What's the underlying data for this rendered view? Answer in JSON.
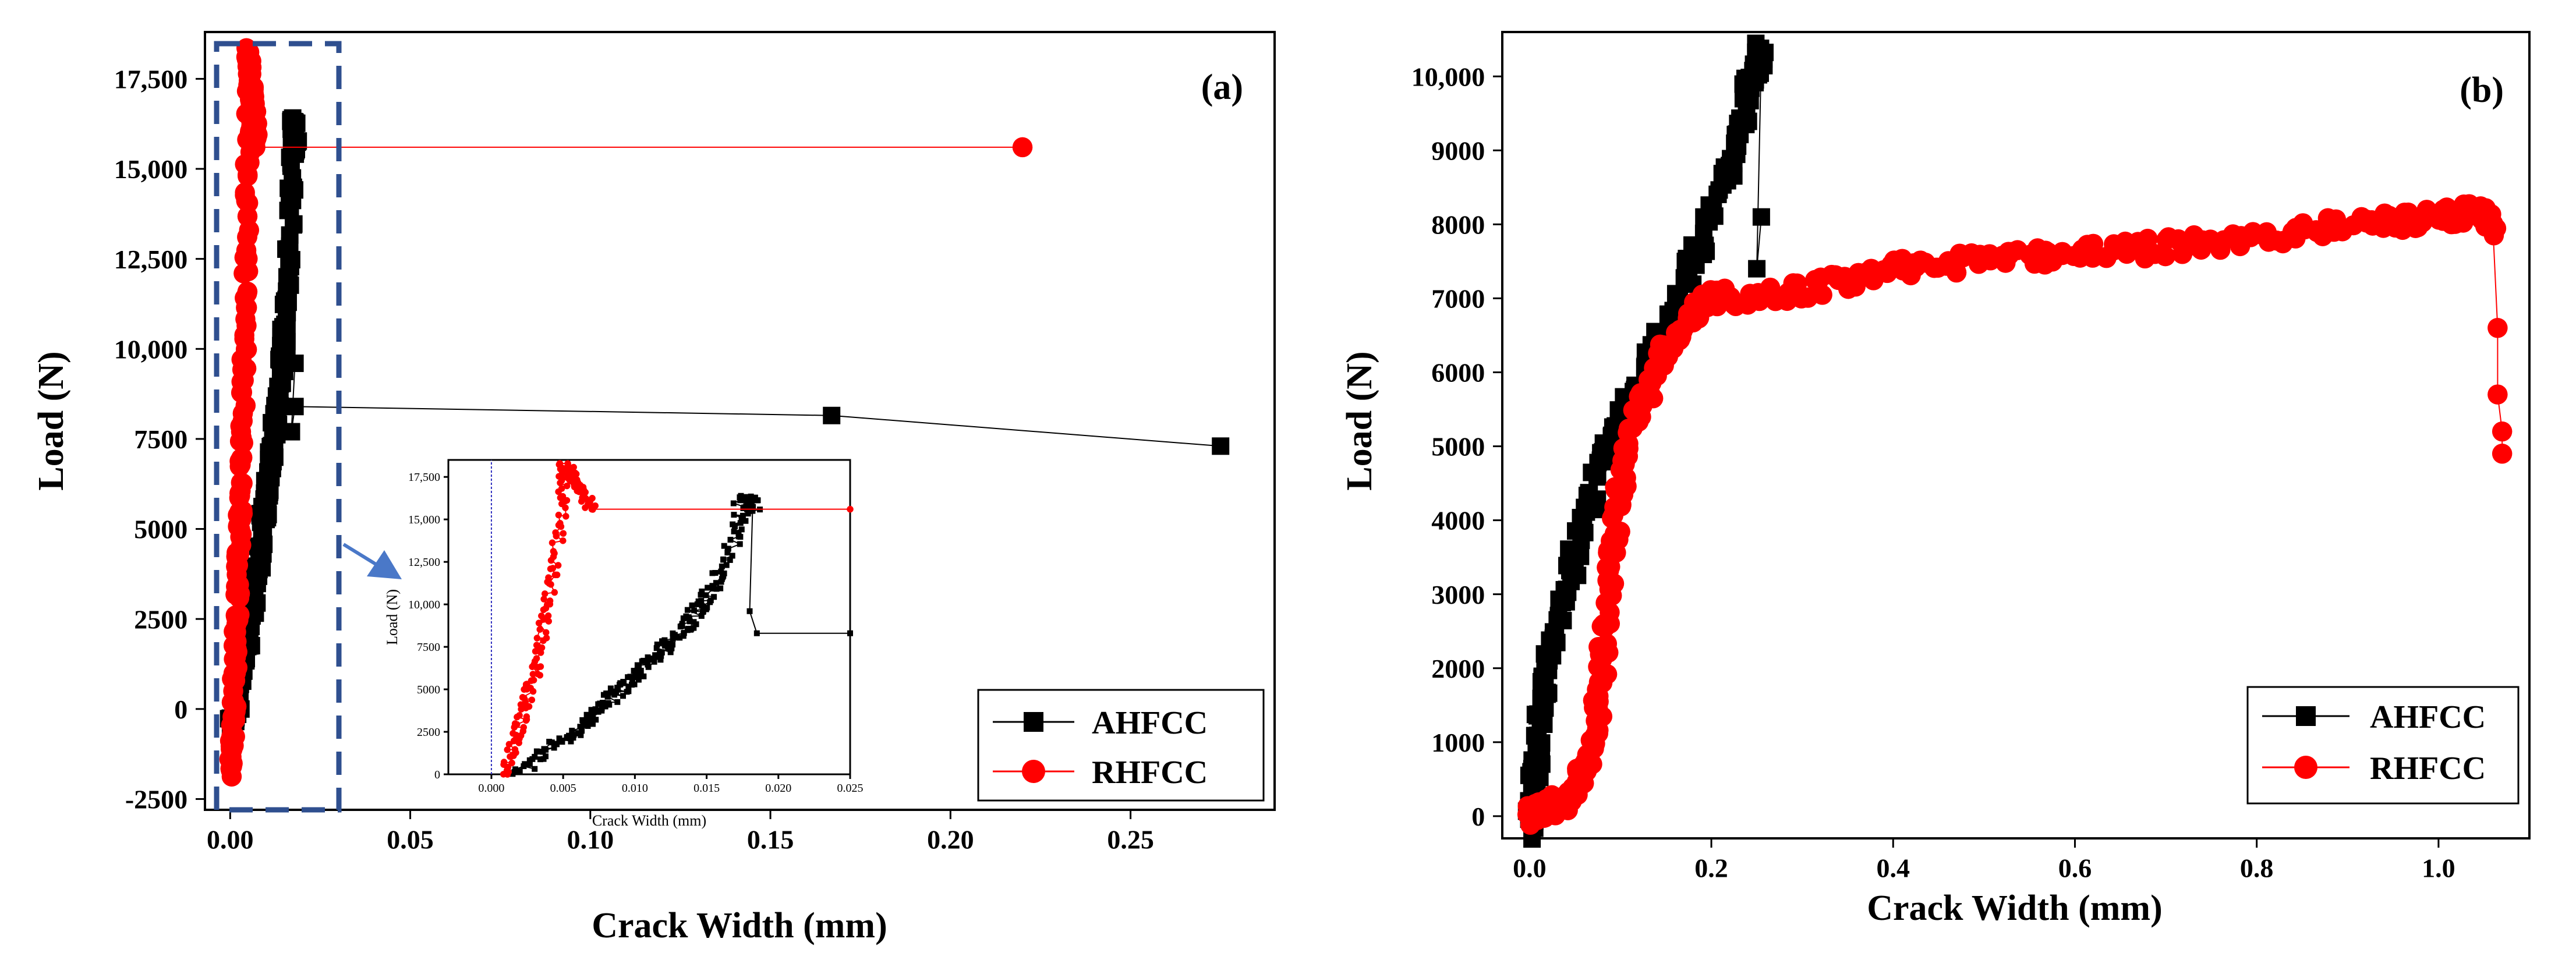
{
  "colors": {
    "ahfcc": "#000000",
    "rhfcc": "#ff0000",
    "box": "#2f4f8f",
    "arrow": "#4a78c8",
    "zero_line": "#3030c0"
  },
  "chart_data": [
    {
      "id": "a",
      "type": "scatter",
      "panel_label": "(a)",
      "xlabel": "Crack Width (mm)",
      "ylabel": "Load (N)",
      "xlim": [
        -0.007,
        0.29
      ],
      "ylim": [
        -2800,
        18800
      ],
      "xticks": [
        0.0,
        0.05,
        0.1,
        0.15,
        0.2,
        0.25
      ],
      "xtick_labels": [
        "0.00",
        "0.05",
        "0.10",
        "0.15",
        "0.20",
        "0.25"
      ],
      "yticks": [
        -2500,
        0,
        2500,
        5000,
        7500,
        10000,
        12500,
        15000,
        17500
      ],
      "ytick_labels": [
        "-2500",
        "0",
        "2500",
        "5000",
        "7500",
        "10,000",
        "12,500",
        "15,000",
        "17,500"
      ],
      "legend_position": "bottom-right",
      "series": [
        {
          "name": "AHFCC",
          "points": [
            [
              0.0,
              -500
            ],
            [
              0.002,
              0
            ],
            [
              0.004,
              1500
            ],
            [
              0.006,
              2500
            ],
            [
              0.007,
              3500
            ],
            [
              0.008,
              4200
            ],
            [
              0.009,
              5000
            ],
            [
              0.01,
              5800
            ],
            [
              0.011,
              6600
            ],
            [
              0.012,
              7400
            ],
            [
              0.013,
              8200
            ],
            [
              0.014,
              9200
            ],
            [
              0.015,
              10300
            ],
            [
              0.016,
              11800
            ],
            [
              0.017,
              14000
            ],
            [
              0.0175,
              16000
            ],
            [
              0.018,
              16300
            ],
            [
              0.0182,
              15500
            ],
            [
              0.018,
              9600
            ],
            [
              0.017,
              7700
            ],
            [
              0.018,
              8400
            ],
            [
              0.167,
              8150
            ],
            [
              0.275,
              7300
            ]
          ]
        },
        {
          "name": "RHFCC",
          "points": [
            [
              0.0,
              -1800
            ],
            [
              0.0005,
              -1000
            ],
            [
              0.001,
              0
            ],
            [
              0.0015,
              1500
            ],
            [
              0.002,
              3000
            ],
            [
              0.0025,
              4500
            ],
            [
              0.003,
              6000
            ],
            [
              0.0035,
              8000
            ],
            [
              0.004,
              10500
            ],
            [
              0.0045,
              13000
            ],
            [
              0.005,
              16000
            ],
            [
              0.005,
              18200
            ],
            [
              0.0055,
              17800
            ],
            [
              0.006,
              17000
            ],
            [
              0.0065,
              16500
            ],
            [
              0.007,
              15600
            ],
            [
              0.22,
              15600
            ]
          ]
        }
      ]
    },
    {
      "id": "inset",
      "type": "scatter",
      "xlabel": "Crack Width (mm)",
      "ylabel": "Load (N)",
      "xlim": [
        -0.003,
        0.025
      ],
      "ylim": [
        0,
        18500
      ],
      "xticks": [
        0.0,
        0.005,
        0.01,
        0.015,
        0.02,
        0.025
      ],
      "xtick_labels": [
        "0.000",
        "0.005",
        "0.010",
        "0.015",
        "0.020",
        "0.025"
      ],
      "yticks": [
        0,
        2500,
        5000,
        7500,
        10000,
        12500,
        15000,
        17500
      ],
      "ytick_labels": [
        "0",
        "2500",
        "5000",
        "7500",
        "10,000",
        "12,500",
        "15,000",
        "17,500"
      ],
      "zero_line_x": 0.0
    },
    {
      "id": "b",
      "type": "scatter",
      "panel_label": "(b)",
      "xlabel": "Crack Width (mm)",
      "ylabel": "Load (N)",
      "xlim": [
        -0.03,
        1.1
      ],
      "ylim": [
        -300,
        10600
      ],
      "xticks": [
        0.0,
        0.2,
        0.4,
        0.6,
        0.8,
        1.0
      ],
      "xtick_labels": [
        "0.0",
        "0.2",
        "0.4",
        "0.6",
        "0.8",
        "1.0"
      ],
      "yticks": [
        0,
        1000,
        2000,
        3000,
        4000,
        5000,
        6000,
        7000,
        8000,
        9000,
        10000
      ],
      "ytick_labels": [
        "0",
        "1000",
        "2000",
        "3000",
        "4000",
        "5000",
        "6000",
        "7000",
        "8000",
        "9000",
        "10,000"
      ],
      "legend_position": "bottom-right",
      "series": [
        {
          "name": "AHFCC",
          "points": [
            [
              0.0,
              -200
            ],
            [
              0.005,
              500
            ],
            [
              0.01,
              1200
            ],
            [
              0.02,
              2000
            ],
            [
              0.04,
              3000
            ],
            [
              0.06,
              4000
            ],
            [
              0.08,
              4800
            ],
            [
              0.1,
              5400
            ],
            [
              0.13,
              6100
            ],
            [
              0.16,
              6900
            ],
            [
              0.19,
              7800
            ],
            [
              0.22,
              8800
            ],
            [
              0.24,
              9700
            ],
            [
              0.25,
              10200
            ],
            [
              0.255,
              10300
            ],
            [
              0.25,
              7400
            ],
            [
              0.255,
              8100
            ]
          ]
        },
        {
          "name": "RHFCC",
          "points": [
            [
              0.0,
              0
            ],
            [
              0.02,
              100
            ],
            [
              0.05,
              300
            ],
            [
              0.07,
              900
            ],
            [
              0.08,
              2000
            ],
            [
              0.09,
              3500
            ],
            [
              0.1,
              4500
            ],
            [
              0.12,
              5400
            ],
            [
              0.15,
              6300
            ],
            [
              0.18,
              6800
            ],
            [
              0.2,
              7000
            ],
            [
              0.3,
              7100
            ],
            [
              0.4,
              7400
            ],
            [
              0.5,
              7500
            ],
            [
              0.6,
              7600
            ],
            [
              0.7,
              7700
            ],
            [
              0.8,
              7800
            ],
            [
              0.9,
              8000
            ],
            [
              1.0,
              8100
            ],
            [
              1.05,
              8200
            ],
            [
              1.06,
              7900
            ],
            [
              1.065,
              6600
            ],
            [
              1.065,
              5700
            ],
            [
              1.07,
              5200
            ],
            [
              1.07,
              4900
            ]
          ]
        }
      ]
    }
  ]
}
